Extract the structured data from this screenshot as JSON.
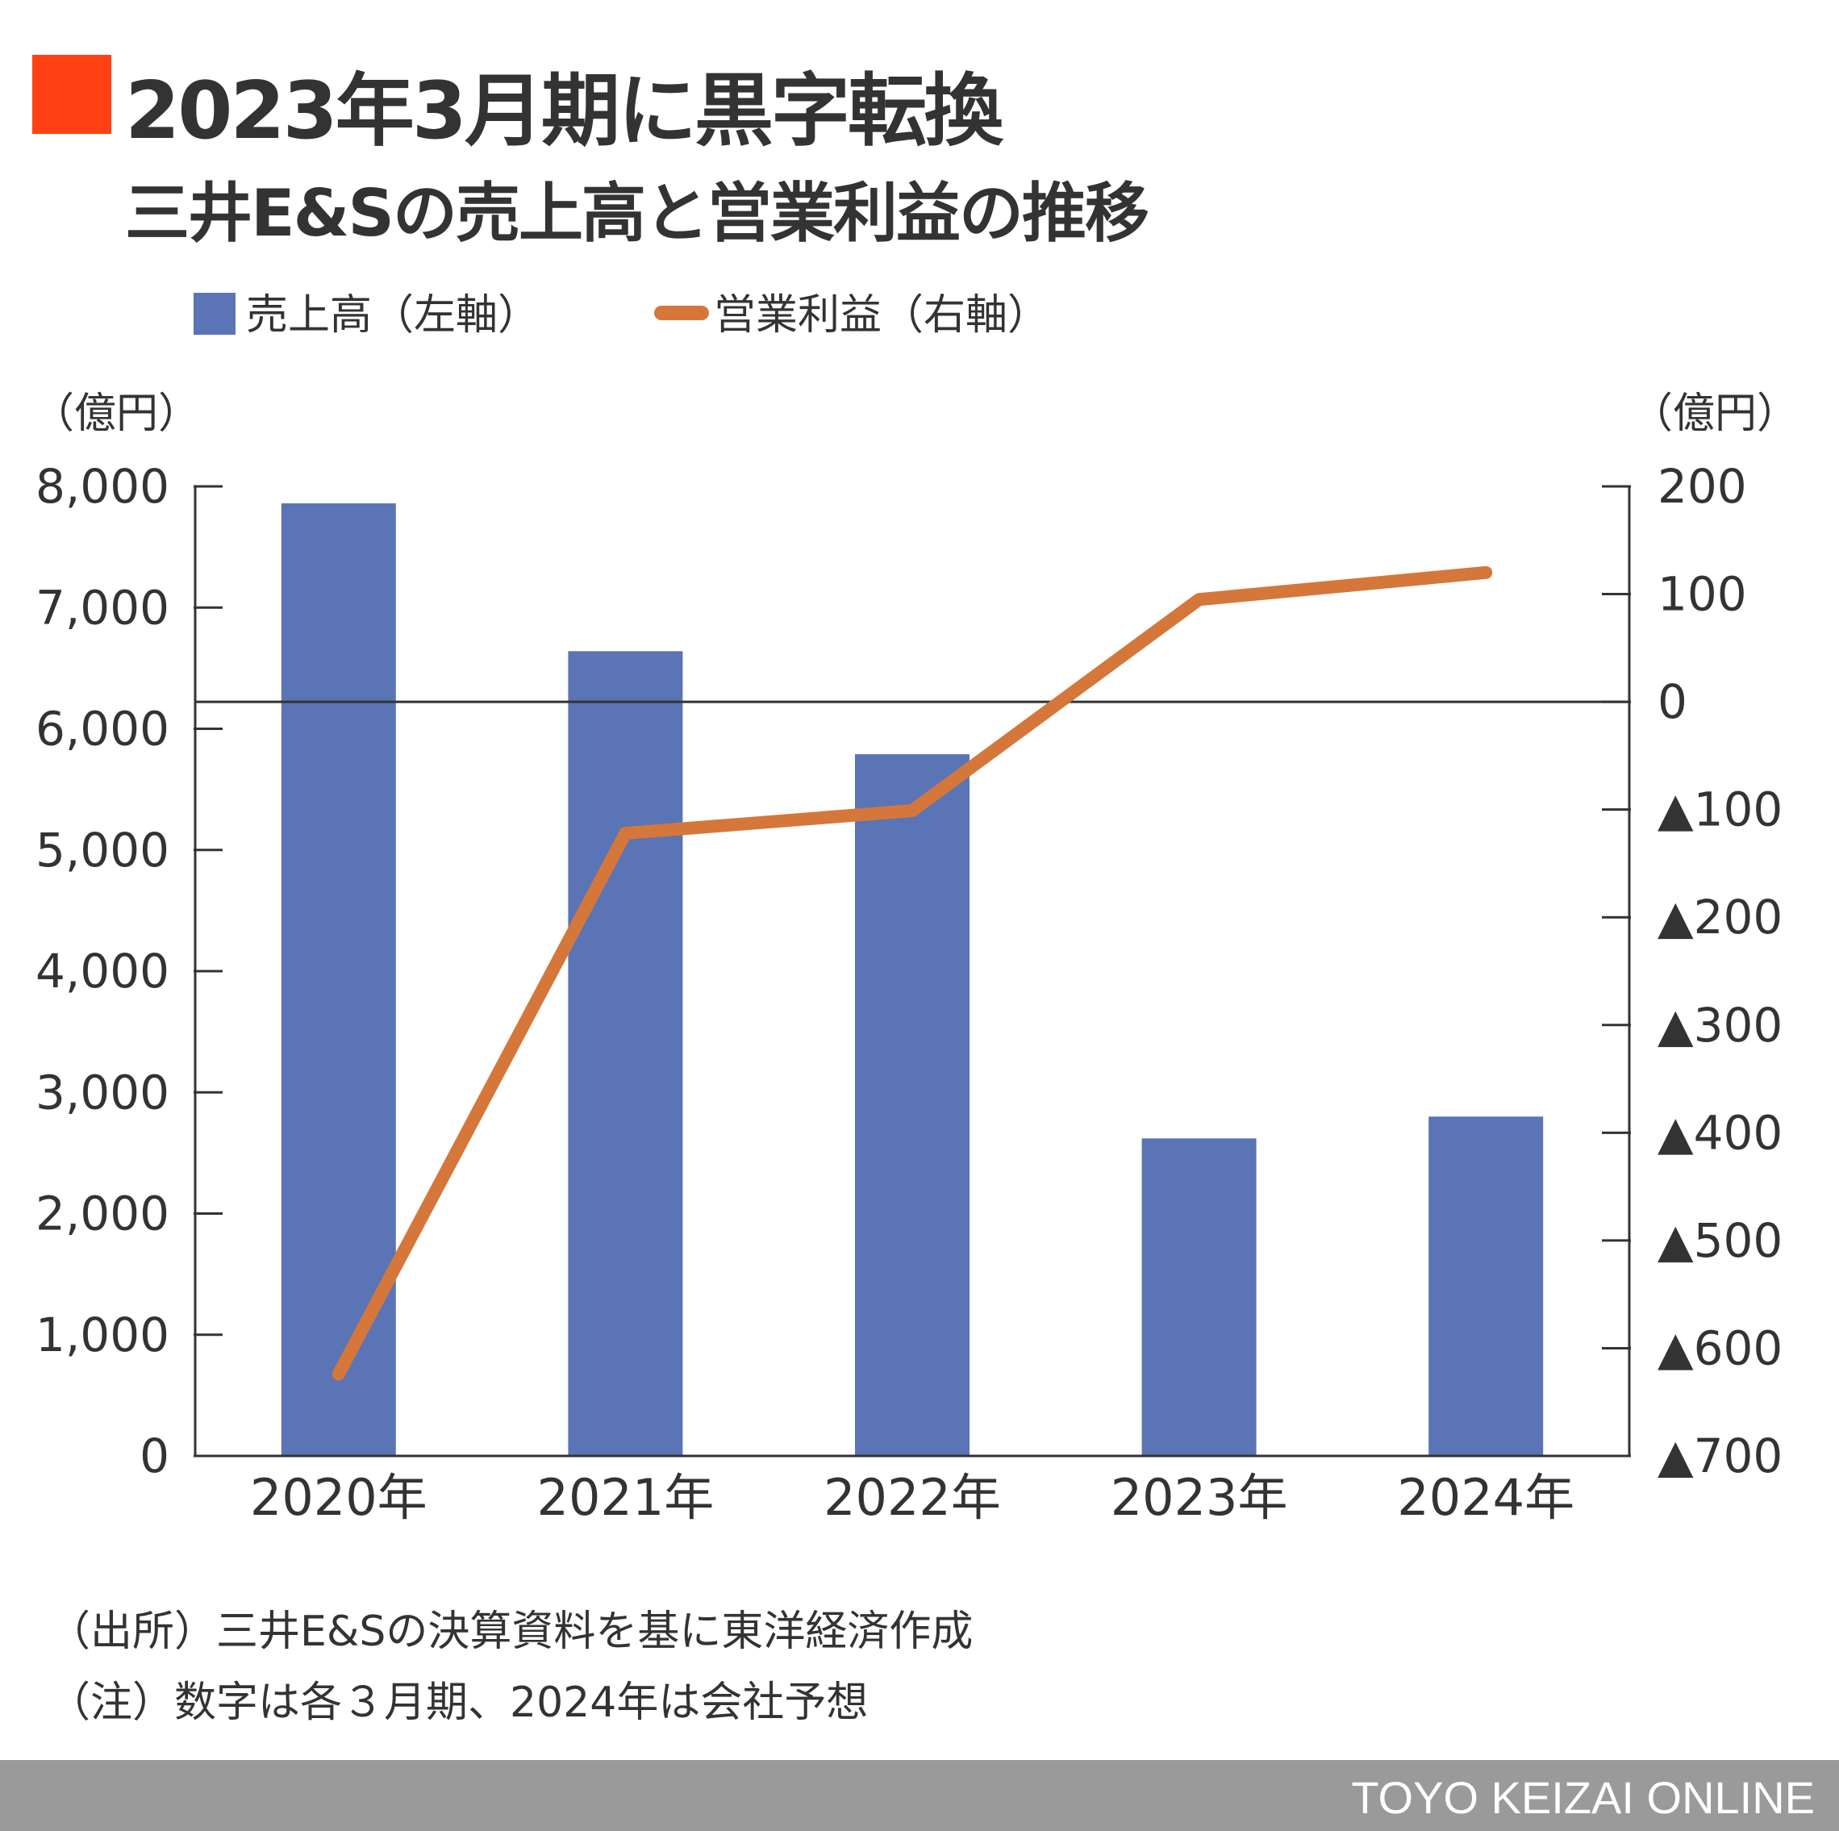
{
  "header": {
    "title": "2023年3月期に黒字転換",
    "subtitle": "三井E&Sの売上高と営業利益の推移",
    "accent_color": "#ff4013"
  },
  "legend": {
    "bar_label": "売上高（左軸）",
    "line_label": "営業利益（右軸）"
  },
  "chart_data": {
    "type": "bar",
    "categories": [
      "2020年",
      "2021年",
      "2022年",
      "2023年",
      "2024年"
    ],
    "left_axis": {
      "unit": "（億円）",
      "ylim": [
        0,
        8000
      ],
      "ticks": [
        0,
        1000,
        2000,
        3000,
        4000,
        5000,
        6000,
        7000,
        8000
      ],
      "tick_labels": [
        "0",
        "1,000",
        "2,000",
        "3,000",
        "4,000",
        "5,000",
        "6,000",
        "7,000",
        "8,000"
      ]
    },
    "right_axis": {
      "unit": "（億円）",
      "ylim": [
        -700,
        200
      ],
      "ticks": [
        200,
        100,
        0,
        -100,
        -200,
        -300,
        -400,
        -500,
        -600,
        -700
      ],
      "tick_labels": [
        "200",
        "100",
        "0",
        "▲100",
        "▲200",
        "▲300",
        "▲400",
        "▲500",
        "▲600",
        "▲700"
      ]
    },
    "series": [
      {
        "name": "売上高",
        "type": "bar",
        "axis": "left",
        "color": "#5a74b5",
        "values": [
          7860,
          6640,
          5790,
          2620,
          2800
        ]
      },
      {
        "name": "営業利益",
        "type": "line",
        "axis": "right",
        "color": "#d5773a",
        "values": [
          -624,
          -122,
          -101,
          95,
          120
        ]
      }
    ],
    "zero_line_right_axis": true,
    "grid": false,
    "legend_placement": "top-left"
  },
  "notes": {
    "source": "（出所）三井E&Sの決算資料を基に東洋経済作成",
    "note": "（注）数字は各３月期、2024年は会社予想"
  },
  "footer": {
    "brand": "TOYO KEIZAI ONLINE"
  }
}
